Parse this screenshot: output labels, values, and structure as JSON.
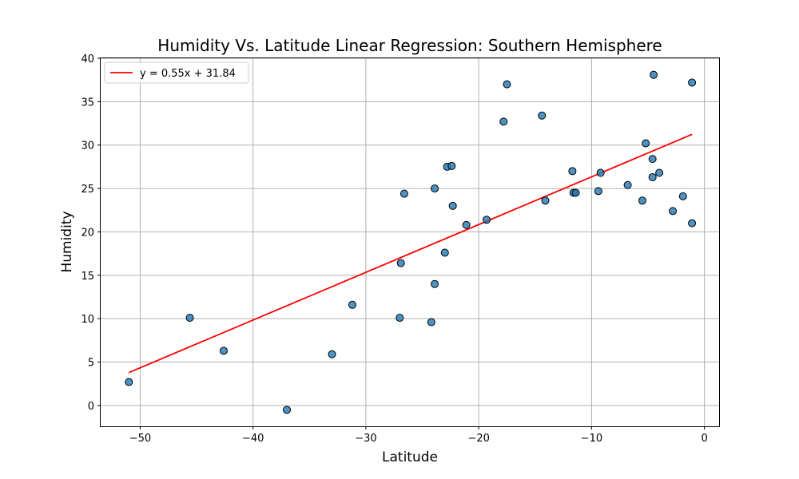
{
  "chart_data": {
    "type": "scatter",
    "title": "Humidity Vs. Latitude Linear Regression: Southern Hemisphere",
    "xlabel": "Latitude",
    "ylabel": "Humidity",
    "xlim": [
      -53.5,
      1.3
    ],
    "ylim": [
      -2.4,
      40.0
    ],
    "xticks": [
      -50,
      -40,
      -30,
      -20,
      -10,
      0
    ],
    "yticks": [
      0,
      5,
      10,
      15,
      20,
      25,
      30,
      35,
      40
    ],
    "grid": true,
    "legend_position": "top-left",
    "series": [
      {
        "kind": "scatter",
        "color": "#1f77b4",
        "points": [
          [
            -51.0,
            2.7
          ],
          [
            -45.6,
            10.1
          ],
          [
            -42.6,
            6.3
          ],
          [
            -37.0,
            -0.5
          ],
          [
            -33.0,
            5.9
          ],
          [
            -31.2,
            11.6
          ],
          [
            -27.0,
            10.1
          ],
          [
            -26.9,
            16.4
          ],
          [
            -26.6,
            24.4
          ],
          [
            -24.2,
            9.6
          ],
          [
            -23.9,
            14.0
          ],
          [
            -23.9,
            25.0
          ],
          [
            -23.0,
            17.6
          ],
          [
            -22.8,
            27.5
          ],
          [
            -22.4,
            27.6
          ],
          [
            -22.3,
            23.0
          ],
          [
            -21.1,
            20.8
          ],
          [
            -19.3,
            21.4
          ],
          [
            -17.8,
            32.7
          ],
          [
            -17.5,
            37.0
          ],
          [
            -14.4,
            33.4
          ],
          [
            -14.1,
            23.6
          ],
          [
            -11.7,
            27.0
          ],
          [
            -11.6,
            24.5
          ],
          [
            -11.4,
            24.5
          ],
          [
            -9.4,
            24.7
          ],
          [
            -9.2,
            26.8
          ],
          [
            -6.8,
            25.4
          ],
          [
            -5.5,
            23.6
          ],
          [
            -5.2,
            30.2
          ],
          [
            -4.6,
            26.3
          ],
          [
            -4.6,
            28.4
          ],
          [
            -4.5,
            38.1
          ],
          [
            -4.0,
            26.8
          ],
          [
            -2.8,
            22.4
          ],
          [
            -1.9,
            24.1
          ],
          [
            -1.1,
            21.0
          ],
          [
            -1.1,
            37.2
          ]
        ]
      },
      {
        "kind": "line",
        "name": "y = 0.55x + 31.84",
        "color": "#ff0000",
        "slope": 0.55,
        "intercept": 31.84,
        "x_range": [
          -51.0,
          -1.1
        ]
      }
    ]
  }
}
